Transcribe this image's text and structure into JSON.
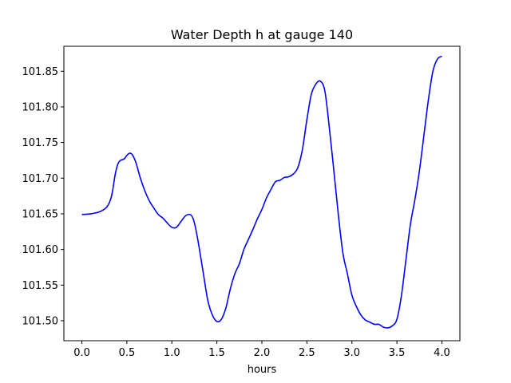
{
  "chart_data": {
    "type": "line",
    "title": "Water Depth h at gauge 140",
    "xlabel": "hours",
    "ylabel": "",
    "xlim": [
      -0.2,
      4.2
    ],
    "ylim": [
      101.472,
      101.885
    ],
    "xticks": [
      "0.0",
      "0.5",
      "1.0",
      "1.5",
      "2.0",
      "2.5",
      "3.0",
      "3.5",
      "4.0"
    ],
    "yticks": [
      "101.50",
      "101.55",
      "101.60",
      "101.65",
      "101.70",
      "101.75",
      "101.80",
      "101.85"
    ],
    "grid": false,
    "legend": "none",
    "series": [
      {
        "color": "#0000ff",
        "x": [
          0.0,
          0.1,
          0.2,
          0.28,
          0.33,
          0.37,
          0.4,
          0.43,
          0.47,
          0.5,
          0.53,
          0.56,
          0.6,
          0.65,
          0.7,
          0.75,
          0.8,
          0.85,
          0.9,
          0.95,
          1.0,
          1.05,
          1.1,
          1.15,
          1.2,
          1.23,
          1.26,
          1.3,
          1.35,
          1.4,
          1.45,
          1.5,
          1.55,
          1.6,
          1.65,
          1.7,
          1.75,
          1.8,
          1.85,
          1.9,
          1.95,
          2.0,
          2.05,
          2.1,
          2.15,
          2.2,
          2.25,
          2.3,
          2.35,
          2.4,
          2.45,
          2.5,
          2.55,
          2.6,
          2.65,
          2.7,
          2.75,
          2.8,
          2.85,
          2.9,
          2.95,
          3.0,
          3.05,
          3.1,
          3.15,
          3.2,
          3.25,
          3.3,
          3.35,
          3.4,
          3.45,
          3.5,
          3.55,
          3.6,
          3.65,
          3.7,
          3.75,
          3.8,
          3.85,
          3.9,
          3.95,
          4.0
        ],
        "y": [
          101.649,
          101.65,
          101.653,
          101.66,
          101.675,
          101.705,
          101.72,
          101.725,
          101.727,
          101.732,
          101.735,
          101.733,
          101.722,
          101.7,
          101.682,
          101.668,
          101.658,
          101.649,
          101.644,
          101.637,
          101.631,
          101.631,
          101.639,
          101.647,
          101.649,
          101.645,
          101.632,
          101.605,
          101.566,
          101.528,
          101.508,
          101.499,
          101.502,
          101.518,
          101.545,
          101.566,
          101.58,
          101.6,
          101.614,
          101.628,
          101.643,
          101.656,
          101.672,
          101.684,
          101.695,
          101.697,
          101.701,
          101.702,
          101.706,
          101.715,
          101.74,
          101.782,
          101.818,
          101.832,
          101.836,
          101.822,
          101.77,
          101.71,
          101.648,
          101.595,
          101.566,
          101.536,
          101.52,
          101.508,
          101.501,
          101.498,
          101.495,
          101.495,
          101.491,
          101.49,
          101.493,
          101.502,
          101.535,
          101.585,
          101.635,
          101.67,
          101.71,
          101.76,
          101.81,
          101.85,
          101.867,
          101.871
        ]
      }
    ]
  }
}
